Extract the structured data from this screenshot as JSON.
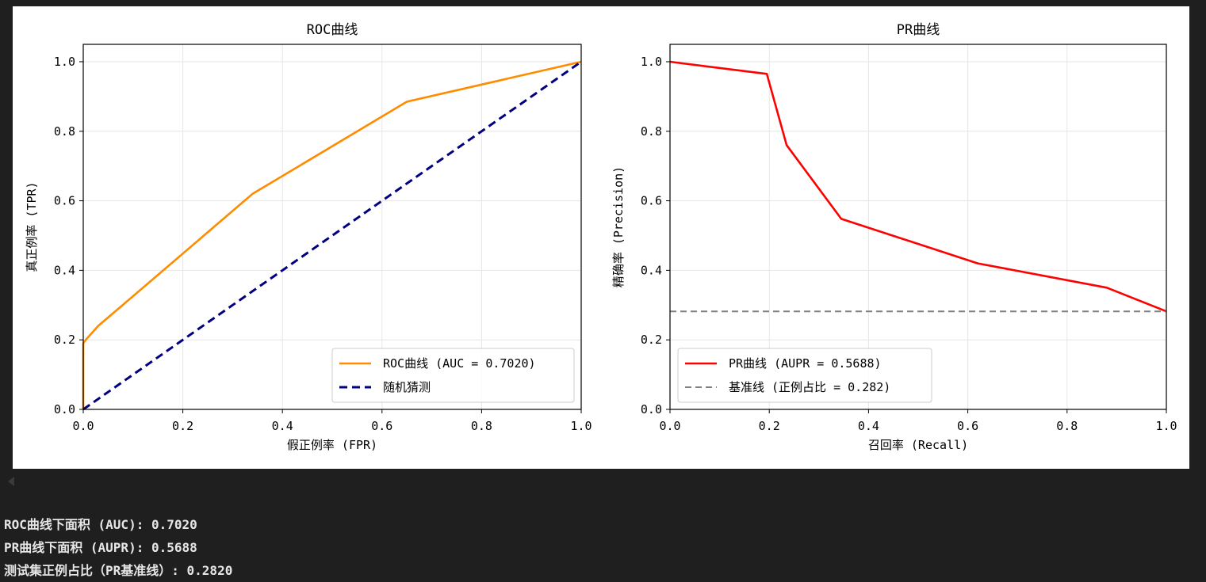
{
  "chart_data": [
    {
      "type": "line",
      "title": "ROC曲线",
      "xlabel": "假正例率 (FPR)",
      "ylabel": "真正例率 (TPR)",
      "xlim": [
        0,
        1
      ],
      "ylim": [
        0,
        1.05
      ],
      "xticks": [
        "0.0",
        "0.2",
        "0.4",
        "0.6",
        "0.8",
        "1.0"
      ],
      "yticks": [
        "0.0",
        "0.2",
        "0.4",
        "0.6",
        "0.8",
        "1.0"
      ],
      "grid": true,
      "legend_position": "lower-right",
      "series": [
        {
          "name": "ROC曲线 (AUC = 0.7020)",
          "color": "#ff8c00",
          "style": "solid",
          "x": [
            0.0,
            0.0,
            0.005,
            0.03,
            0.12,
            0.34,
            0.65,
            1.0
          ],
          "y": [
            0.0,
            0.19,
            0.2,
            0.24,
            0.35,
            0.62,
            0.885,
            1.0
          ]
        },
        {
          "name": "随机猜测",
          "color": "#000080",
          "style": "dashed",
          "x": [
            0.0,
            1.0
          ],
          "y": [
            0.0,
            1.0
          ]
        }
      ]
    },
    {
      "type": "line",
      "title": "PR曲线",
      "xlabel": "召回率 (Recall)",
      "ylabel": "精确率 (Precision)",
      "xlim": [
        0,
        1
      ],
      "ylim": [
        0,
        1.05
      ],
      "xticks": [
        "0.0",
        "0.2",
        "0.4",
        "0.6",
        "0.8",
        "1.0"
      ],
      "yticks": [
        "0.0",
        "0.2",
        "0.4",
        "0.6",
        "0.8",
        "1.0"
      ],
      "grid": true,
      "legend_position": "lower-left",
      "series": [
        {
          "name": "PR曲线 (AUPR = 0.5688)",
          "color": "#ff0000",
          "style": "solid",
          "x": [
            0.0,
            0.195,
            0.235,
            0.345,
            0.62,
            0.88,
            1.0
          ],
          "y": [
            1.0,
            0.965,
            0.76,
            0.548,
            0.42,
            0.35,
            0.282
          ]
        },
        {
          "name": "基准线 (正例占比 = 0.282)",
          "color": "#808080",
          "style": "dashed",
          "x": [
            0.0,
            1.0
          ],
          "y": [
            0.282,
            0.282
          ]
        }
      ]
    }
  ],
  "output": {
    "lines": [
      "ROC曲线下面积 (AUC): 0.7020",
      "PR曲线下面积 (AUPR): 0.5688",
      "测试集正例占比（PR基准线）: 0.2820"
    ]
  }
}
